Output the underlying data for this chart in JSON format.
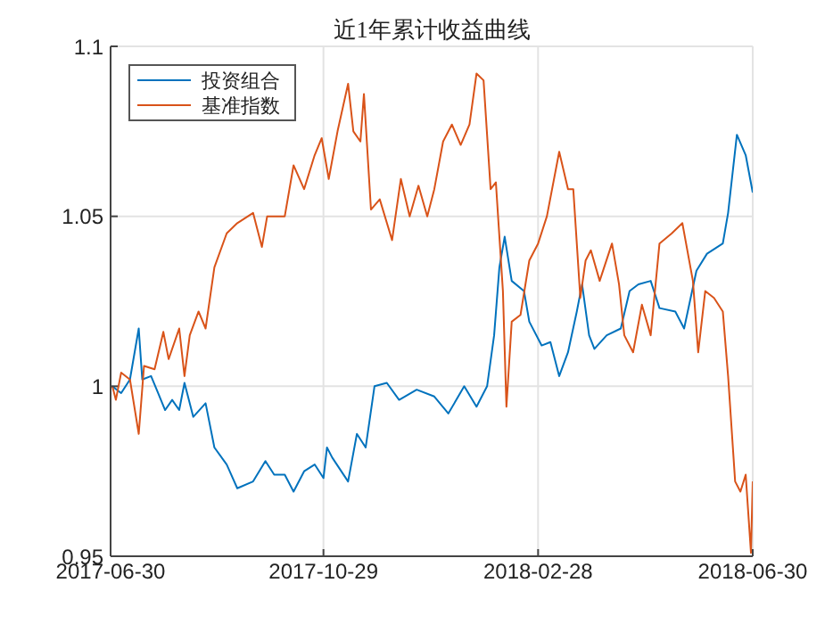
{
  "chart_data": {
    "type": "line",
    "title": "近1年累计收益曲线",
    "xlim": [
      "2017-06-30",
      "2018-06-30"
    ],
    "xticks": [
      "2017-06-30",
      "2017-10-29",
      "2018-02-28",
      "2018-06-30"
    ],
    "ylim": [
      0.95,
      1.1
    ],
    "yticks": [
      0.95,
      1,
      1.05,
      1.1
    ],
    "grid": true,
    "legend": "top left",
    "marker": "none",
    "line_style": "solid",
    "series": [
      {
        "name": "投资组合",
        "color": "#0072bd",
        "x": [
          "2017-07-01",
          "2017-07-06",
          "2017-07-11",
          "2017-07-16",
          "2017-07-18",
          "2017-07-23",
          "2017-07-27",
          "2017-07-31",
          "2017-08-04",
          "2017-08-08",
          "2017-08-11",
          "2017-08-16",
          "2017-08-23",
          "2017-08-28",
          "2017-09-04",
          "2017-09-10",
          "2017-09-19",
          "2017-09-26",
          "2017-10-01",
          "2017-10-07",
          "2017-10-12",
          "2017-10-18",
          "2017-10-24",
          "2017-10-29",
          "2017-10-31",
          "2017-11-03",
          "2017-11-12",
          "2017-11-17",
          "2017-11-22",
          "2017-11-27",
          "2017-12-04",
          "2017-12-11",
          "2017-12-21",
          "2017-12-31",
          "2018-01-08",
          "2018-01-17",
          "2018-01-24",
          "2018-01-30",
          "2018-02-03",
          "2018-02-06",
          "2018-02-09",
          "2018-02-13",
          "2018-02-20",
          "2018-02-23",
          "2018-03-02",
          "2018-03-07",
          "2018-03-12",
          "2018-03-17",
          "2018-03-22",
          "2018-03-25",
          "2018-03-29",
          "2018-04-01",
          "2018-04-08",
          "2018-04-16",
          "2018-04-21",
          "2018-04-26",
          "2018-05-03",
          "2018-05-08",
          "2018-05-17",
          "2018-05-22",
          "2018-05-29",
          "2018-06-04",
          "2018-06-13",
          "2018-06-16",
          "2018-06-21",
          "2018-06-26",
          "2018-06-30"
        ],
        "values": [
          1.0,
          0.998,
          1.002,
          1.017,
          1.002,
          1.003,
          0.998,
          0.993,
          0.996,
          0.993,
          1.001,
          0.991,
          0.995,
          0.982,
          0.977,
          0.97,
          0.972,
          0.978,
          0.974,
          0.974,
          0.969,
          0.975,
          0.977,
          0.973,
          0.982,
          0.979,
          0.972,
          0.986,
          0.982,
          1.0,
          1.001,
          0.996,
          0.999,
          0.997,
          0.992,
          1.0,
          0.994,
          1.0,
          1.015,
          1.035,
          1.044,
          1.031,
          1.028,
          1.019,
          1.012,
          1.013,
          1.003,
          1.01,
          1.022,
          1.03,
          1.015,
          1.011,
          1.015,
          1.017,
          1.028,
          1.03,
          1.031,
          1.023,
          1.022,
          1.017,
          1.034,
          1.039,
          1.042,
          1.051,
          1.074,
          1.068,
          1.057
        ]
      },
      {
        "name": "基准指数",
        "color": "#d95319",
        "x": [
          "2017-07-01",
          "2017-07-03",
          "2017-07-06",
          "2017-07-11",
          "2017-07-16",
          "2017-07-19",
          "2017-07-25",
          "2017-07-30",
          "2017-08-02",
          "2017-08-08",
          "2017-08-11",
          "2017-08-14",
          "2017-08-19",
          "2017-08-23",
          "2017-08-28",
          "2017-09-04",
          "2017-09-10",
          "2017-09-19",
          "2017-09-24",
          "2017-09-27",
          "2017-10-07",
          "2017-10-12",
          "2017-10-18",
          "2017-10-24",
          "2017-10-28",
          "2017-11-01",
          "2017-11-06",
          "2017-11-12",
          "2017-11-15",
          "2017-11-19",
          "2017-11-21",
          "2017-11-25",
          "2017-11-30",
          "2017-12-07",
          "2017-12-12",
          "2017-12-17",
          "2017-12-22",
          "2017-12-27",
          "2017-12-31",
          "2018-01-05",
          "2018-01-10",
          "2018-01-15",
          "2018-01-20",
          "2018-01-24",
          "2018-01-28",
          "2018-02-01",
          "2018-02-04",
          "2018-02-08",
          "2018-02-10",
          "2018-02-13",
          "2018-02-18",
          "2018-02-23",
          "2018-02-28",
          "2018-03-05",
          "2018-03-12",
          "2018-03-17",
          "2018-03-20",
          "2018-03-24",
          "2018-03-27",
          "2018-03-30",
          "2018-04-04",
          "2018-04-11",
          "2018-04-15",
          "2018-04-18",
          "2018-04-23",
          "2018-04-28",
          "2018-05-03",
          "2018-05-08",
          "2018-05-15",
          "2018-05-21",
          "2018-05-27",
          "2018-05-30",
          "2018-06-03",
          "2018-06-08",
          "2018-06-13",
          "2018-06-16",
          "2018-06-20",
          "2018-06-23",
          "2018-06-26",
          "2018-06-29",
          "2018-06-30"
        ],
        "values": [
          1.0,
          0.996,
          1.004,
          1.002,
          0.986,
          1.006,
          1.005,
          1.016,
          1.008,
          1.017,
          1.003,
          1.015,
          1.022,
          1.017,
          1.035,
          1.045,
          1.048,
          1.051,
          1.041,
          1.05,
          1.05,
          1.065,
          1.058,
          1.068,
          1.073,
          1.061,
          1.075,
          1.089,
          1.075,
          1.072,
          1.086,
          1.052,
          1.055,
          1.043,
          1.061,
          1.05,
          1.059,
          1.05,
          1.058,
          1.072,
          1.077,
          1.071,
          1.077,
          1.092,
          1.09,
          1.058,
          1.06,
          1.028,
          0.994,
          1.019,
          1.021,
          1.037,
          1.042,
          1.05,
          1.069,
          1.058,
          1.058,
          1.026,
          1.037,
          1.04,
          1.031,
          1.042,
          1.03,
          1.015,
          1.01,
          1.024,
          1.015,
          1.042,
          1.045,
          1.048,
          1.031,
          1.01,
          1.028,
          1.026,
          1.022,
          1.003,
          0.972,
          0.969,
          0.974,
          0.951,
          0.972
        ]
      }
    ]
  }
}
